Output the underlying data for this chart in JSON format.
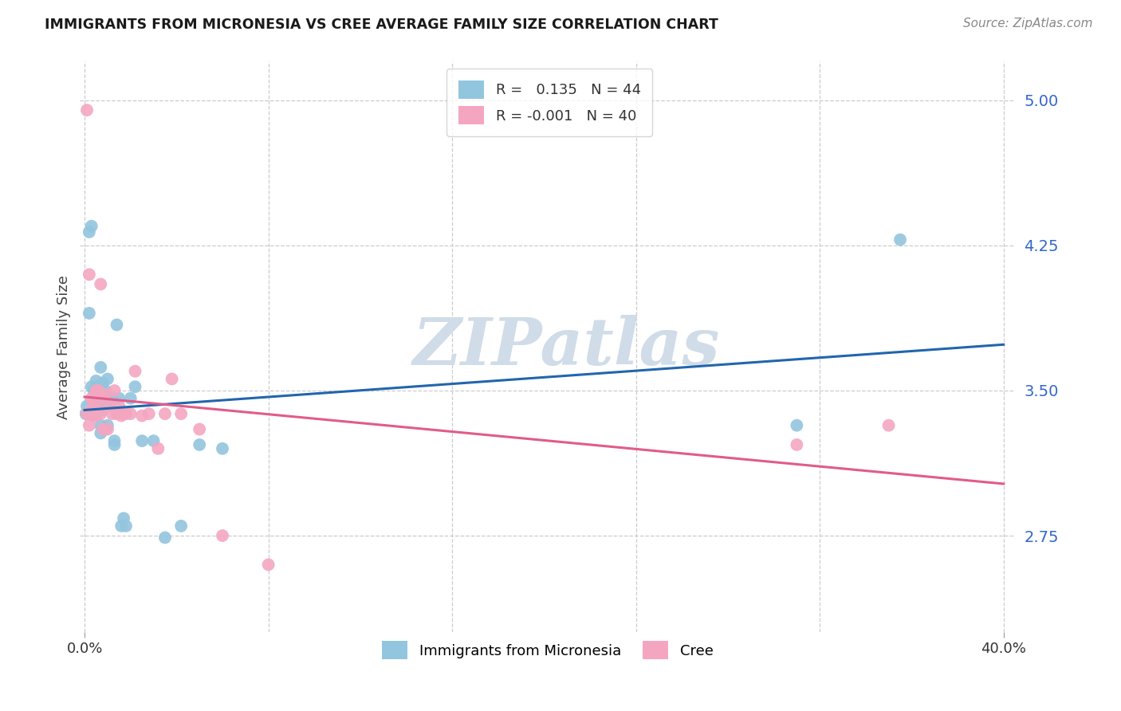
{
  "title": "IMMIGRANTS FROM MICRONESIA VS CREE AVERAGE FAMILY SIZE CORRELATION CHART",
  "source": "Source: ZipAtlas.com",
  "ylabel": "Average Family Size",
  "yticks": [
    2.75,
    3.5,
    4.25,
    5.0
  ],
  "ymin": 2.25,
  "ymax": 5.2,
  "xmin": -0.002,
  "xmax": 0.405,
  "color_blue": "#92c5de",
  "color_pink": "#f4a6c0",
  "line_blue": "#2166ac",
  "line_pink": "#e05c8a",
  "grid_color": "#cccccc",
  "watermark": "ZIPatlas",
  "watermark_color": "#d0dce8",
  "tick_color": "#3366cc",
  "micronesia_x": [
    0.0005,
    0.001,
    0.002,
    0.002,
    0.003,
    0.003,
    0.004,
    0.004,
    0.005,
    0.005,
    0.005,
    0.005,
    0.006,
    0.006,
    0.006,
    0.007,
    0.007,
    0.007,
    0.007,
    0.008,
    0.008,
    0.009,
    0.009,
    0.01,
    0.01,
    0.011,
    0.012,
    0.013,
    0.013,
    0.014,
    0.015,
    0.016,
    0.017,
    0.018,
    0.02,
    0.022,
    0.025,
    0.03,
    0.035,
    0.042,
    0.05,
    0.06,
    0.31,
    0.355
  ],
  "micronesia_y": [
    3.38,
    3.42,
    3.9,
    4.32,
    4.35,
    3.52,
    3.5,
    3.46,
    3.52,
    3.55,
    3.46,
    3.4,
    3.44,
    3.5,
    3.4,
    3.62,
    3.32,
    3.52,
    3.28,
    3.4,
    3.54,
    3.5,
    3.3,
    3.56,
    3.32,
    3.44,
    3.46,
    3.22,
    3.24,
    3.84,
    3.46,
    2.8,
    2.84,
    2.8,
    3.46,
    3.52,
    3.24,
    3.24,
    2.74,
    2.8,
    3.22,
    3.2,
    3.32,
    4.28
  ],
  "cree_x": [
    0.001,
    0.001,
    0.002,
    0.002,
    0.003,
    0.003,
    0.004,
    0.004,
    0.005,
    0.005,
    0.005,
    0.006,
    0.006,
    0.007,
    0.007,
    0.008,
    0.008,
    0.009,
    0.01,
    0.011,
    0.012,
    0.013,
    0.014,
    0.015,
    0.016,
    0.017,
    0.018,
    0.02,
    0.022,
    0.025,
    0.028,
    0.032,
    0.035,
    0.038,
    0.042,
    0.05,
    0.06,
    0.08,
    0.31,
    0.35
  ],
  "cree_y": [
    4.95,
    3.38,
    4.1,
    3.32,
    3.46,
    3.4,
    3.44,
    3.37,
    3.37,
    3.5,
    3.4,
    3.5,
    3.4,
    4.05,
    3.38,
    3.46,
    3.3,
    3.48,
    3.3,
    3.42,
    3.38,
    3.5,
    3.38,
    3.42,
    3.37,
    3.38,
    3.38,
    3.38,
    3.6,
    3.37,
    3.38,
    3.2,
    3.38,
    3.56,
    3.38,
    3.3,
    2.75,
    2.6,
    3.22,
    3.32
  ]
}
